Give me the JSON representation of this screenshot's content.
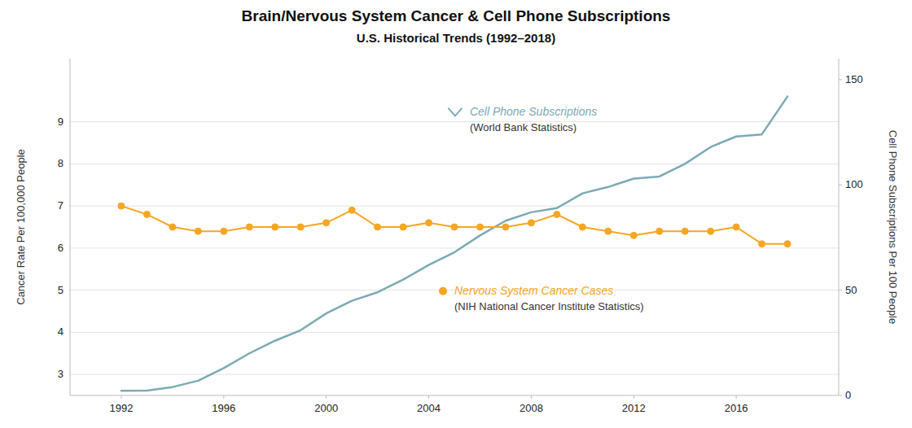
{
  "chart_data": {
    "type": "line",
    "title": "Brain/Nervous System Cancer & Cell Phone Subscriptions",
    "subtitle": "U.S. Historical Trends (1992–2018)",
    "y_label": "Cancer Rate Per 100,000 People",
    "y2_label": "Cell Phone Subscriptions Per 100 People",
    "x": [
      1992,
      1993,
      1994,
      1995,
      1996,
      1997,
      1998,
      1999,
      2000,
      2001,
      2002,
      2003,
      2004,
      2005,
      2006,
      2007,
      2008,
      2009,
      2010,
      2011,
      2012,
      2013,
      2014,
      2015,
      2016,
      2017,
      2018
    ],
    "xlim": [
      1990,
      2020
    ],
    "xticks": [
      1992,
      1996,
      2000,
      2004,
      2008,
      2012,
      2016
    ],
    "ylim": [
      2.5,
      10.5
    ],
    "yticks": [
      3,
      4,
      5,
      6,
      7,
      8,
      9
    ],
    "y2lim": [
      0,
      160
    ],
    "y2ticks": [
      0,
      50,
      100,
      150
    ],
    "grid": true,
    "annotations": [
      "(World Bank Statistics)",
      "(NIH National Cancer Institute Statistics)"
    ],
    "series": [
      {
        "name": "Cell Phone Subscriptions",
        "color": "#7BAAB5",
        "axis": "y2",
        "values": [
          2.2,
          2.3,
          4.0,
          7.0,
          13.0,
          20.0,
          26.0,
          31.0,
          39.0,
          45.0,
          49.0,
          55.0,
          62.0,
          68.0,
          76.0,
          83.0,
          87.0,
          89.0,
          96.0,
          99.0,
          103.0,
          104.0,
          110.0,
          118.0,
          123.0,
          124.0,
          142.0
        ]
      },
      {
        "name": "Nervous System Cancer Cases",
        "color": "#F5A623",
        "axis": "y",
        "marker": "circle",
        "values": [
          7.0,
          6.8,
          6.5,
          6.4,
          6.4,
          6.5,
          6.5,
          6.5,
          6.6,
          6.9,
          6.5,
          6.5,
          6.6,
          6.5,
          6.5,
          6.5,
          6.6,
          6.8,
          6.5,
          6.4,
          6.3,
          6.4,
          6.4,
          6.4,
          6.5,
          6.1,
          6.1
        ]
      }
    ]
  }
}
